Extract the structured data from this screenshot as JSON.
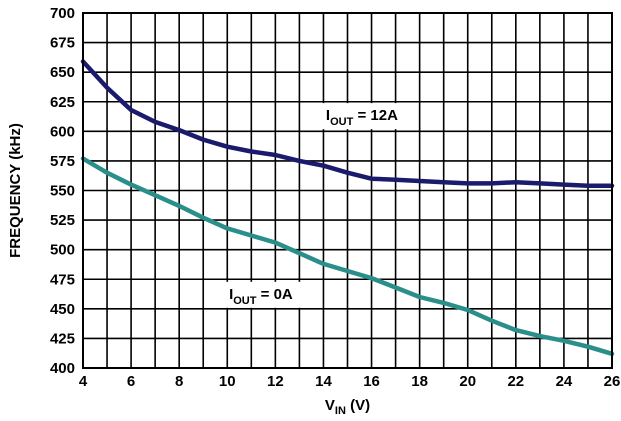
{
  "chart_data": {
    "type": "line",
    "xlabel": "V",
    "xlabel_sub": "IN",
    "xlabel_suffix": " (V)",
    "ylabel": "FREQUENCY (kHz)",
    "xlim": [
      4,
      26
    ],
    "ylim": [
      400,
      700
    ],
    "x_ticks": [
      4,
      6,
      8,
      10,
      12,
      14,
      16,
      18,
      20,
      22,
      24,
      26
    ],
    "y_ticks": [
      400,
      425,
      450,
      475,
      500,
      525,
      550,
      575,
      600,
      625,
      650,
      675,
      700
    ],
    "grid": true,
    "series": [
      {
        "name": "I",
        "name_sub": "OUT",
        "name_suffix": " = 12A",
        "color": "#1b1b6e",
        "x": [
          4,
          5,
          6,
          7,
          8,
          9,
          10,
          11,
          12,
          13,
          14,
          15,
          16,
          17,
          18,
          19,
          20,
          21,
          22,
          23,
          24,
          25,
          26
        ],
        "y": [
          659,
          637,
          618,
          608,
          601,
          593,
          587,
          583,
          580,
          575,
          571,
          565,
          560,
          559,
          558,
          557,
          556,
          556,
          557,
          556,
          555,
          554,
          554
        ]
      },
      {
        "name": "I",
        "name_sub": "OUT",
        "name_suffix": " = 0A",
        "color": "#2a8f8a",
        "x": [
          4,
          5,
          6,
          7,
          8,
          9,
          10,
          11,
          12,
          13,
          14,
          15,
          16,
          17,
          18,
          19,
          20,
          21,
          22,
          23,
          24,
          25,
          26
        ],
        "y": [
          577,
          565,
          555,
          546,
          537,
          527,
          518,
          512,
          506,
          497,
          488,
          482,
          476,
          468,
          460,
          455,
          449,
          440,
          432,
          427,
          423,
          418,
          412
        ]
      }
    ]
  }
}
